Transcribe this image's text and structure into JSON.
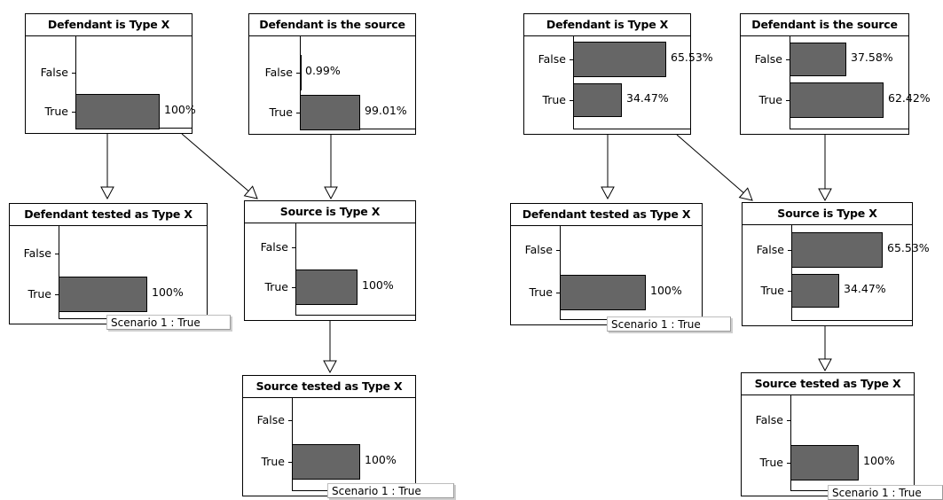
{
  "colors": {
    "bar_fill": "#666666",
    "border": "#000000",
    "background": "#ffffff"
  },
  "states": [
    "False",
    "True"
  ],
  "networks": [
    {
      "nodes": [
        {
          "id": "defendant_type",
          "title": "Defendant is Type X",
          "probs": [
            {
              "state": "False",
              "value": 0,
              "label": ""
            },
            {
              "state": "True",
              "value": 1,
              "label": "100%"
            }
          ]
        },
        {
          "id": "defendant_source",
          "title": "Defendant is the source",
          "probs": [
            {
              "state": "False",
              "value": 0.0099,
              "label": "0.99%"
            },
            {
              "state": "True",
              "value": 0.9901,
              "label": "99.01%"
            }
          ]
        },
        {
          "id": "defendant_tested",
          "title": "Defendant tested as Type X",
          "probs": [
            {
              "state": "False",
              "value": 0,
              "label": ""
            },
            {
              "state": "True",
              "value": 1,
              "label": "100%"
            }
          ],
          "evidence": "Scenario 1 : True"
        },
        {
          "id": "source_type",
          "title": "Source is Type X",
          "probs": [
            {
              "state": "False",
              "value": 0,
              "label": ""
            },
            {
              "state": "True",
              "value": 1,
              "label": "100%"
            }
          ]
        },
        {
          "id": "source_tested",
          "title": "Source tested as Type X",
          "probs": [
            {
              "state": "False",
              "value": 0,
              "label": ""
            },
            {
              "state": "True",
              "value": 1,
              "label": "100%"
            }
          ],
          "evidence": "Scenario 1 : True"
        }
      ]
    },
    {
      "nodes": [
        {
          "id": "defendant_type",
          "title": "Defendant is Type X",
          "probs": [
            {
              "state": "False",
              "value": 0.6553,
              "label": "65.53%"
            },
            {
              "state": "True",
              "value": 0.3447,
              "label": "34.47%"
            }
          ]
        },
        {
          "id": "defendant_source",
          "title": "Defendant is the source",
          "probs": [
            {
              "state": "False",
              "value": 0.3758,
              "label": "37.58%"
            },
            {
              "state": "True",
              "value": 0.6242,
              "label": "62.42%"
            }
          ]
        },
        {
          "id": "defendant_tested",
          "title": "Defendant tested as Type X",
          "probs": [
            {
              "state": "False",
              "value": 0,
              "label": ""
            },
            {
              "state": "True",
              "value": 1,
              "label": "100%"
            }
          ],
          "evidence": "Scenario 1 : True"
        },
        {
          "id": "source_type",
          "title": "Source is Type X",
          "probs": [
            {
              "state": "False",
              "value": 0.6553,
              "label": "65.53%"
            },
            {
              "state": "True",
              "value": 0.3447,
              "label": "34.47%"
            }
          ]
        },
        {
          "id": "source_tested",
          "title": "Source tested as Type X",
          "probs": [
            {
              "state": "False",
              "value": 0,
              "label": ""
            },
            {
              "state": "True",
              "value": 1,
              "label": "100%"
            }
          ],
          "evidence": "Scenario 1 : True"
        }
      ]
    }
  ],
  "edges": [
    {
      "from": "defendant_type",
      "to": "defendant_tested"
    },
    {
      "from": "defendant_type",
      "to": "source_type"
    },
    {
      "from": "defendant_source",
      "to": "source_type"
    },
    {
      "from": "source_type",
      "to": "source_tested"
    }
  ]
}
